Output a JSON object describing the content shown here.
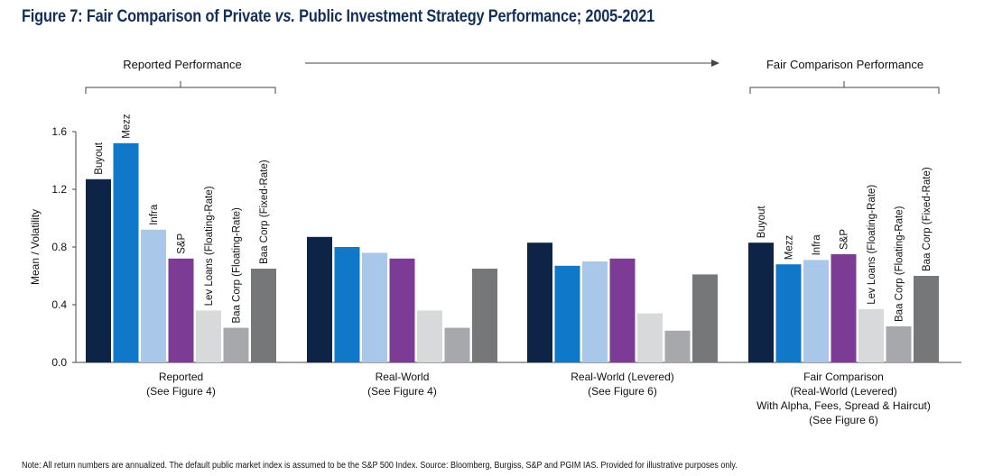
{
  "title_prefix": "Figure 7:  Fair Comparison of Private ",
  "title_vs": "vs.",
  "title_suffix": " Public Investment Strategy Performance; 2005-2021",
  "header_left": "Reported Performance",
  "header_right": "Fair Comparison Performance",
  "note": "Note: All return numbers are annualized. The default public market index is assumed to be the S&P 500 Index. Source: Bloomberg, Burgiss, S&P and PGIM IAS. Provided for illustrative purposes only.",
  "colors": {
    "Buyout": "#0e2447",
    "Mezz": "#0f78c8",
    "Infra": "#a9c8e9",
    "S&P": "#7c3c96",
    "Lev Loans (Floating-Rate)": "#d8d9db",
    "Baa Corp (Floating-Rate)": "#a7a8ab",
    "Baa Corp (Fixed-Rate)": "#767779"
  },
  "chart_data": {
    "type": "bar",
    "ylabel": "Mean / Volatility",
    "ylim": [
      0,
      1.6
    ],
    "yticks": [
      "0.0",
      "0.4",
      "0.8",
      "1.2",
      "1.6"
    ],
    "grid": false,
    "series_names": [
      "Buyout",
      "Mezz",
      "Infra",
      "S&P",
      "Lev Loans (Floating-Rate)",
      "Baa Corp (Floating-Rate)",
      "Baa Corp (Fixed-Rate)"
    ],
    "groups": [
      {
        "label_lines": [
          "Reported",
          "(See Figure 4)"
        ],
        "bar_labels": true,
        "values": [
          1.27,
          1.52,
          0.92,
          0.72,
          0.36,
          0.24,
          0.65
        ]
      },
      {
        "label_lines": [
          "Real-World",
          "(See Figure 4)"
        ],
        "bar_labels": false,
        "values": [
          0.87,
          0.8,
          0.76,
          0.72,
          0.36,
          0.24,
          0.65
        ]
      },
      {
        "label_lines": [
          "Real-World (Levered)",
          "(See Figure 6)"
        ],
        "bar_labels": false,
        "values": [
          0.83,
          0.67,
          0.7,
          0.72,
          0.34,
          0.22,
          0.61
        ]
      },
      {
        "label_lines": [
          "Fair Comparison",
          "(Real-World (Levered)",
          "With Alpha, Fees, Spread & Haircut)",
          "(See Figure 6)"
        ],
        "bar_labels": true,
        "values": [
          0.83,
          0.68,
          0.71,
          0.75,
          0.37,
          0.25,
          0.6
        ]
      }
    ]
  }
}
